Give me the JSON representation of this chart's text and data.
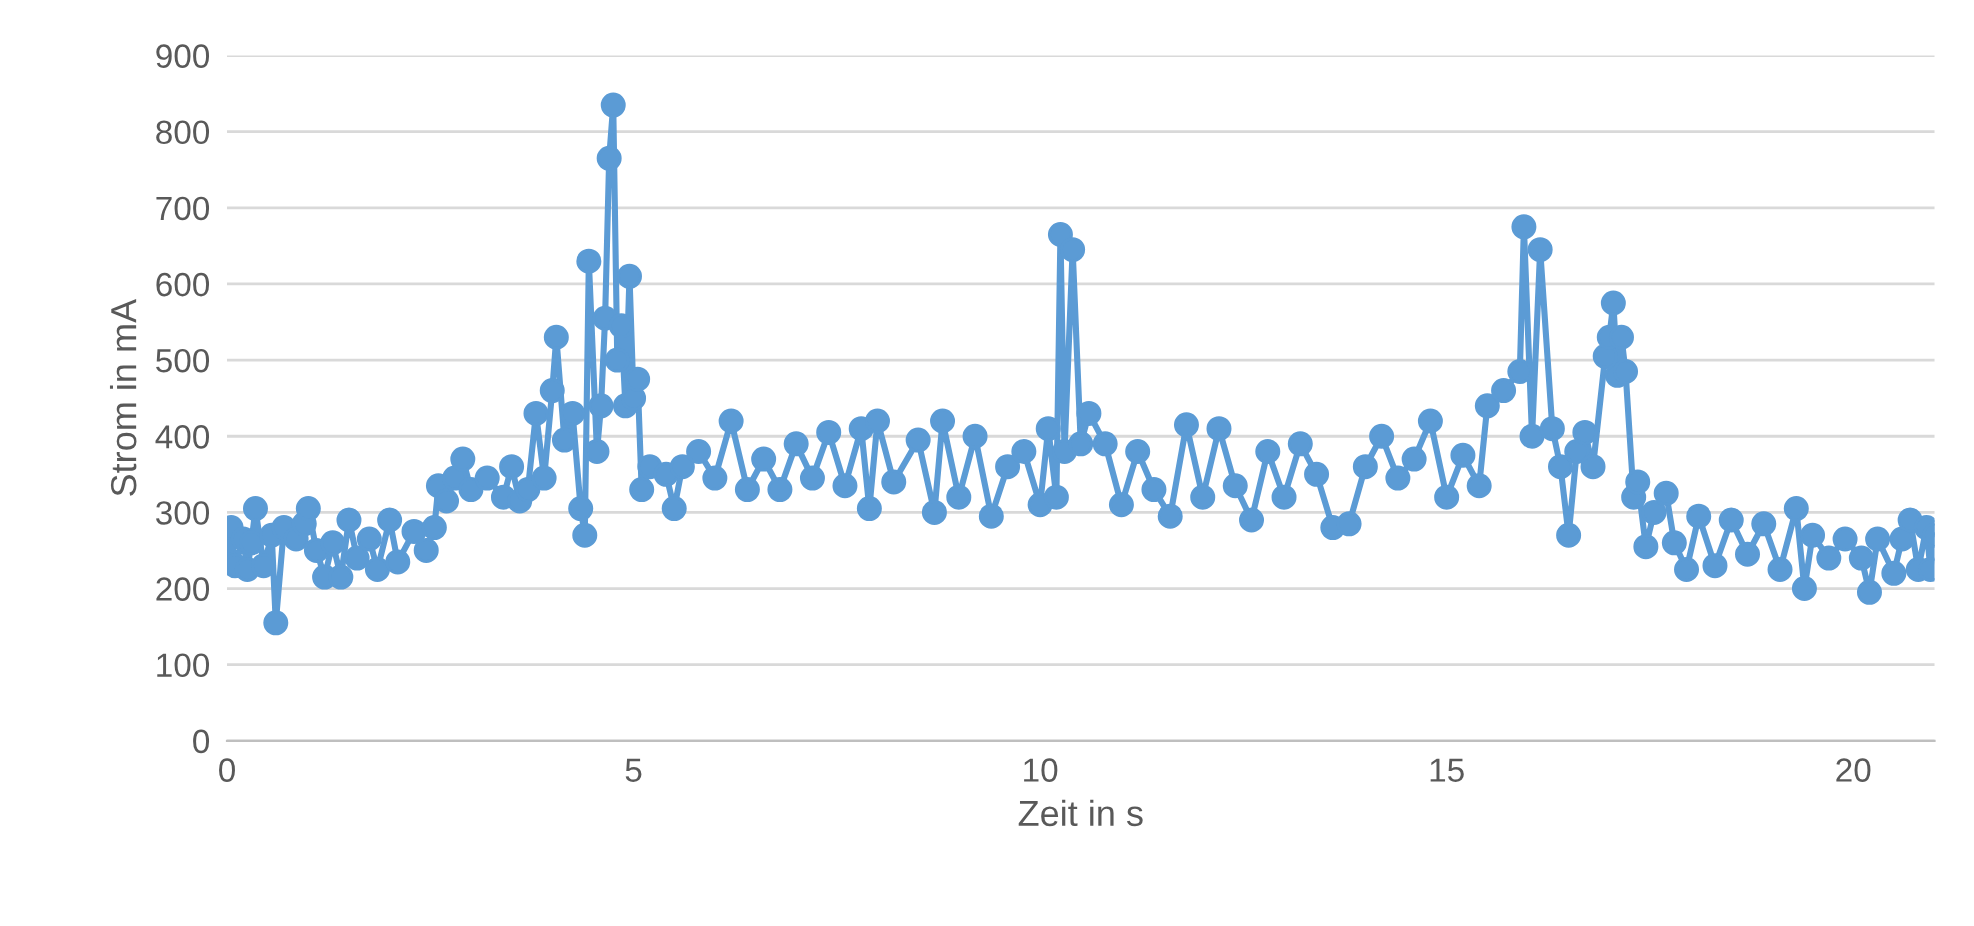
{
  "chart_data": {
    "type": "line",
    "xlabel": "Zeit in s",
    "ylabel": "Strom in mA",
    "xlim": [
      0,
      21
    ],
    "xticks": [
      0,
      5,
      10,
      15,
      20
    ],
    "ylim": [
      0,
      900
    ],
    "yticks": [
      0,
      100,
      200,
      300,
      400,
      500,
      600,
      700,
      800,
      900
    ],
    "grid": "y",
    "legend": false,
    "marker": "circle",
    "line_style": "solid",
    "series": [
      {
        "color": "#5b9bd5",
        "x": [
          0.0,
          0.05,
          0.1,
          0.2,
          0.25,
          0.3,
          0.35,
          0.45,
          0.55,
          0.6,
          0.7,
          0.85,
          0.95,
          1.0,
          1.1,
          1.2,
          1.3,
          1.4,
          1.5,
          1.6,
          1.75,
          1.85,
          2.0,
          2.1,
          2.3,
          2.45,
          2.55,
          2.6,
          2.7,
          2.8,
          2.9,
          3.0,
          3.2,
          3.4,
          3.5,
          3.6,
          3.7,
          3.8,
          3.9,
          4.0,
          4.05,
          4.15,
          4.25,
          4.35,
          4.4,
          4.45,
          4.55,
          4.6,
          4.65,
          4.7,
          4.75,
          4.8,
          4.85,
          4.9,
          4.95,
          5.0,
          5.05,
          5.1,
          5.2,
          5.4,
          5.5,
          5.6,
          5.8,
          6.0,
          6.2,
          6.4,
          6.6,
          6.8,
          7.0,
          7.2,
          7.4,
          7.6,
          7.8,
          7.9,
          8.0,
          8.2,
          8.5,
          8.7,
          8.8,
          9.0,
          9.2,
          9.4,
          9.6,
          9.8,
          10.0,
          10.1,
          10.2,
          10.25,
          10.3,
          10.4,
          10.5,
          10.6,
          10.8,
          11.0,
          11.2,
          11.4,
          11.6,
          11.8,
          12.0,
          12.2,
          12.4,
          12.6,
          12.8,
          13.0,
          13.2,
          13.4,
          13.6,
          13.8,
          14.0,
          14.2,
          14.4,
          14.6,
          14.8,
          15.0,
          15.2,
          15.4,
          15.5,
          15.7,
          15.9,
          15.95,
          16.05,
          16.15,
          16.3,
          16.4,
          16.5,
          16.6,
          16.7,
          16.8,
          16.95,
          17.0,
          17.05,
          17.1,
          17.15,
          17.2,
          17.3,
          17.35,
          17.45,
          17.55,
          17.7,
          17.8,
          17.95,
          18.1,
          18.3,
          18.5,
          18.7,
          18.9,
          19.1,
          19.3,
          19.4,
          19.5,
          19.7,
          19.9,
          20.1,
          20.2,
          20.3,
          20.5,
          20.6,
          20.7,
          20.8,
          20.9,
          20.95,
          21.0
        ],
        "values": [
          235,
          280,
          230,
          265,
          225,
          260,
          305,
          230,
          270,
          155,
          280,
          265,
          285,
          305,
          250,
          215,
          260,
          215,
          290,
          240,
          265,
          225,
          290,
          235,
          275,
          250,
          280,
          335,
          315,
          345,
          370,
          330,
          345,
          320,
          360,
          315,
          330,
          430,
          345,
          460,
          530,
          395,
          430,
          305,
          270,
          630,
          380,
          440,
          555,
          765,
          835,
          500,
          545,
          440,
          610,
          450,
          475,
          330,
          360,
          350,
          305,
          360,
          380,
          345,
          420,
          330,
          370,
          330,
          390,
          345,
          405,
          335,
          410,
          305,
          420,
          340,
          395,
          300,
          420,
          320,
          400,
          295,
          360,
          380,
          310,
          410,
          320,
          665,
          380,
          645,
          390,
          430,
          390,
          310,
          380,
          330,
          295,
          415,
          320,
          410,
          335,
          290,
          380,
          320,
          390,
          350,
          280,
          285,
          360,
          400,
          345,
          370,
          420,
          320,
          375,
          335,
          440,
          460,
          485,
          675,
          400,
          645,
          410,
          360,
          270,
          380,
          405,
          360,
          505,
          530,
          575,
          480,
          530,
          485,
          320,
          340,
          255,
          300,
          325,
          260,
          225,
          295,
          230,
          290,
          245,
          285,
          225,
          305,
          200,
          270,
          240,
          265,
          240,
          195,
          265,
          220,
          265,
          290,
          225,
          280,
          225,
          270
        ]
      }
    ]
  }
}
